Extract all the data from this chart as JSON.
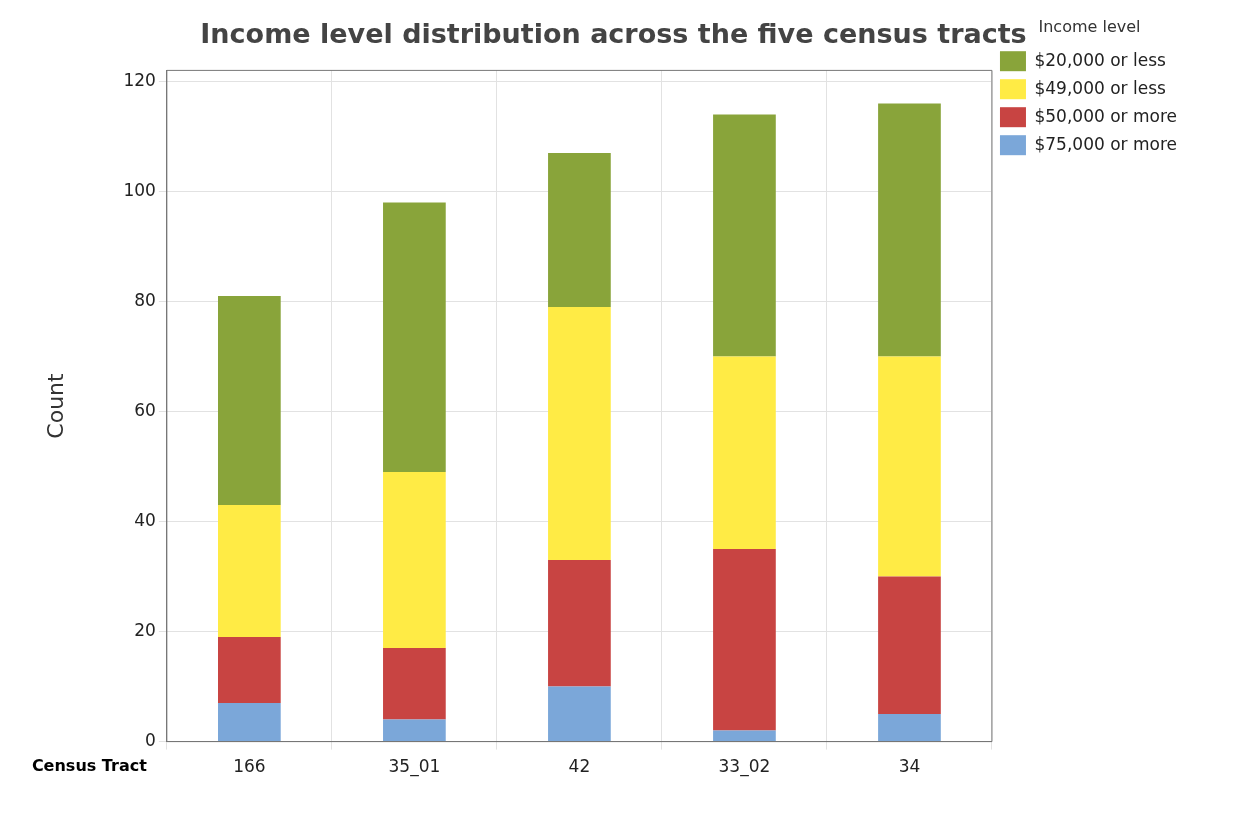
{
  "chart_data": {
    "type": "bar",
    "title": "Income level distribution across the five census tracts",
    "xlabel": "Census Tract",
    "ylabel": "Count",
    "legend_title": "Income level",
    "categories": [
      "166",
      "35_01",
      "42",
      "33_02",
      "34"
    ],
    "stacked": true,
    "series": [
      {
        "name": "$75,000 or more",
        "color": "#7ba7d9",
        "values": [
          7,
          4,
          10,
          2,
          5
        ]
      },
      {
        "name": "$50,000 or more",
        "color": "#c84442",
        "values": [
          12,
          13,
          23,
          33,
          25
        ]
      },
      {
        "name": "$49,000 or less",
        "color": "#ffeb45",
        "values": [
          24,
          32,
          46,
          35,
          40
        ]
      },
      {
        "name": "$20,000 or less",
        "color": "#89a43a",
        "values": [
          38,
          49,
          28,
          44,
          46
        ]
      }
    ],
    "ylim": [
      0,
      122
    ],
    "yticks": [
      0,
      20,
      40,
      60,
      80,
      100,
      120
    ],
    "grid": true,
    "legend": "top right"
  }
}
